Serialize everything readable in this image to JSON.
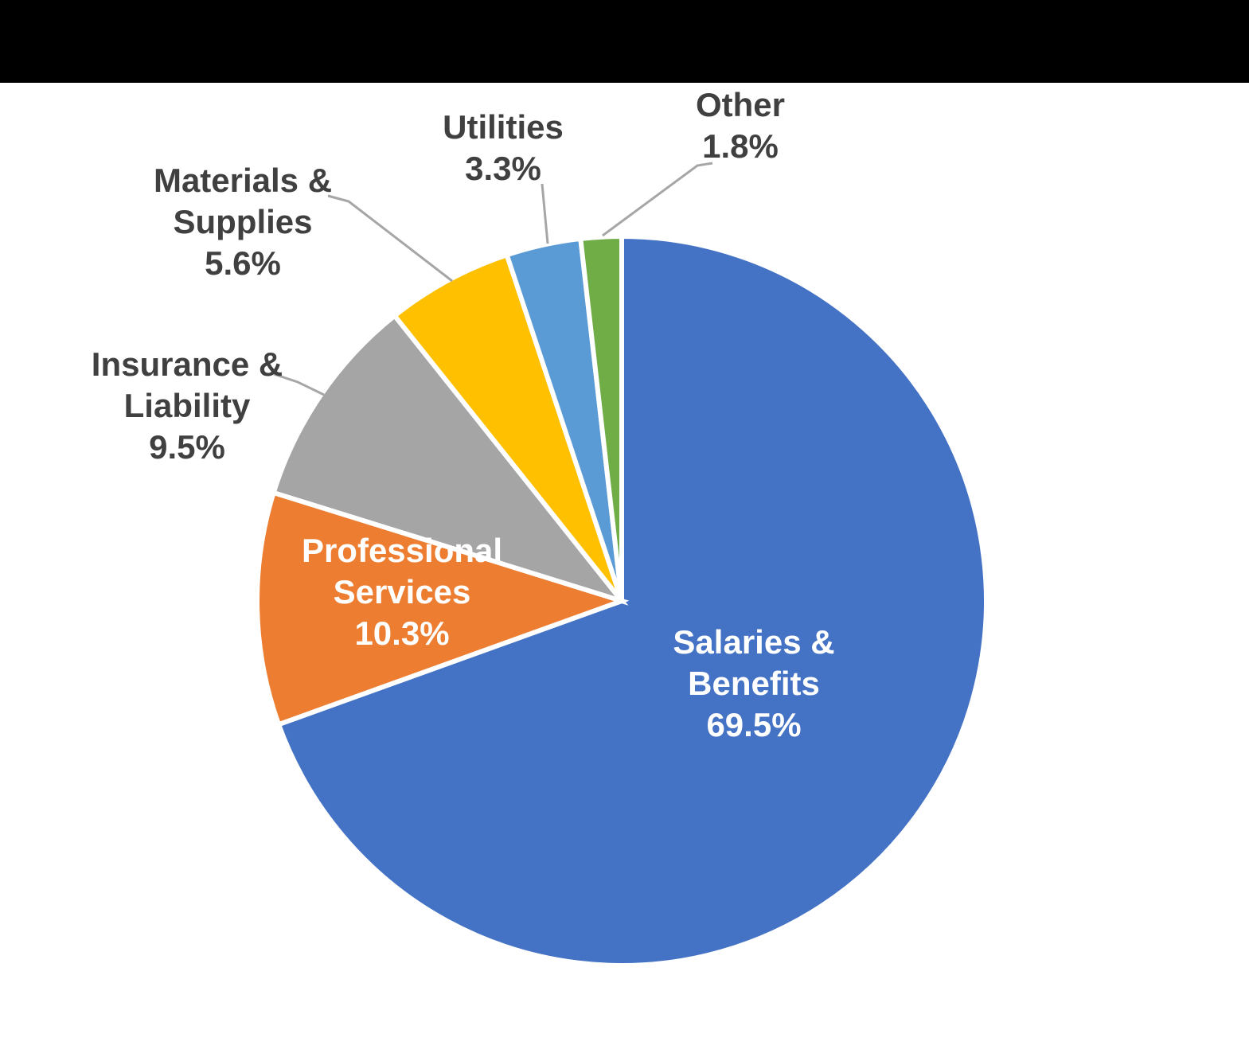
{
  "top_bar": {
    "color": "#000000"
  },
  "chart_data": {
    "type": "pie",
    "title": "",
    "unit": "percent",
    "legend": "none",
    "background": "#FFFFFF",
    "start_angle_deg": 0,
    "direction": "clockwise",
    "slice_border_color": "#FFFFFF",
    "inside_label_color": "#FFFFFF",
    "outside_label_color": "#404040",
    "leader_line_color": "#A6A6A6",
    "slices": [
      {
        "label": "Salaries & Benefits",
        "value": 69.5,
        "value_label": "69.5%",
        "color": "#4472C4",
        "label_placement": "inside",
        "display": "Salaries &\nBenefits\n69.5%"
      },
      {
        "label": "Professional Services",
        "value": 10.3,
        "value_label": "10.3%",
        "color": "#ED7D31",
        "label_placement": "inside",
        "display": "Professional\nServices\n10.3%"
      },
      {
        "label": "Insurance & Liability",
        "value": 9.5,
        "value_label": "9.5%",
        "color": "#A5A5A5",
        "label_placement": "outside",
        "display": "Insurance &\nLiability\n9.5%"
      },
      {
        "label": "Materials & Supplies",
        "value": 5.6,
        "value_label": "5.6%",
        "color": "#FFC000",
        "label_placement": "outside",
        "display": "Materials &\nSupplies\n5.6%"
      },
      {
        "label": "Utilities",
        "value": 3.3,
        "value_label": "3.3%",
        "color": "#5B9BD5",
        "label_placement": "outside",
        "display": "Utilities\n3.3%"
      },
      {
        "label": "Other",
        "value": 1.8,
        "value_label": "1.8%",
        "color": "#70AD47",
        "label_placement": "outside",
        "display": "Other\n1.8%"
      }
    ]
  }
}
